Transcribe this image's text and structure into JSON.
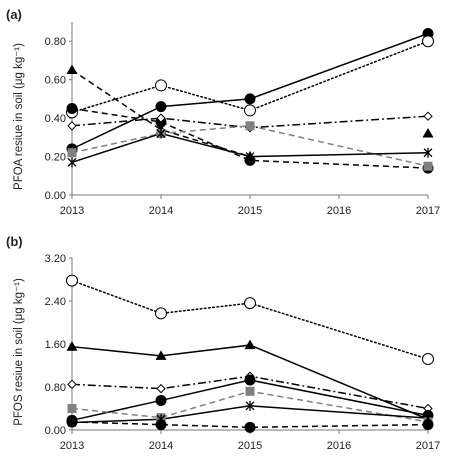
{
  "chart_data": [
    {
      "panel_label": "(a)",
      "type": "line",
      "ylabel": "PFOA resiue in soil (μg kg⁻¹)",
      "x": [
        2013,
        2014,
        2015,
        2017
      ],
      "xticks": [
        2013,
        2014,
        2015,
        2016,
        2017
      ],
      "ylim": [
        0,
        0.9
      ],
      "yticks": [
        0.0,
        0.2,
        0.4,
        0.6,
        0.8
      ],
      "ytick_labels": [
        "0.00",
        "0.20",
        "0.40",
        "0.60",
        "0.80"
      ],
      "grid": false,
      "series": [
        {
          "marker": "circle-filled",
          "dash": "solid",
          "color": "#000000",
          "values": [
            0.24,
            0.46,
            0.5,
            0.84
          ]
        },
        {
          "marker": "circle-open",
          "dash": "dotted",
          "color": "#000000",
          "values": [
            0.43,
            0.57,
            0.44,
            0.8
          ]
        },
        {
          "marker": "triangle-filled",
          "dash": "dashed",
          "color": "#000000",
          "values": [
            0.65,
            0.34,
            0.2,
            null
          ]
        },
        {
          "marker": "triangle-filled",
          "dash": "none",
          "color": "#000000",
          "values": [
            null,
            null,
            null,
            0.32
          ]
        },
        {
          "marker": "circle-filled",
          "dash": "dashed",
          "color": "#000000",
          "values": [
            0.45,
            0.38,
            0.18,
            0.14
          ]
        },
        {
          "marker": "diamond-open",
          "dash": "dashdot",
          "color": "#000000",
          "values": [
            0.36,
            0.4,
            0.35,
            0.41
          ]
        },
        {
          "marker": "square-filled",
          "dash": "dashed",
          "color": "#808080",
          "values": [
            0.22,
            0.32,
            0.36,
            0.15
          ]
        },
        {
          "marker": "star",
          "dash": "solid",
          "color": "#000000",
          "values": [
            0.17,
            0.32,
            0.2,
            0.22
          ]
        }
      ]
    },
    {
      "panel_label": "(b)",
      "type": "line",
      "ylabel": "PFOS resiue in soil (μg kg⁻¹)",
      "x": [
        2013,
        2014,
        2015,
        2017
      ],
      "xticks": [
        2013,
        2014,
        2015,
        2016,
        2017
      ],
      "ylim": [
        0,
        3.2
      ],
      "yticks": [
        0.0,
        0.8,
        1.6,
        2.4,
        3.2
      ],
      "ytick_labels": [
        "0.00",
        "0.80",
        "1.60",
        "2.40",
        "3.20"
      ],
      "grid": false,
      "series": [
        {
          "marker": "circle-open",
          "dash": "dotted",
          "color": "#000000",
          "values": [
            2.78,
            2.17,
            2.36,
            1.32
          ]
        },
        {
          "marker": "triangle-filled",
          "dash": "solid",
          "color": "#000000",
          "values": [
            1.55,
            1.38,
            1.58,
            0.2
          ]
        },
        {
          "marker": "diamond-open",
          "dash": "dashdot",
          "color": "#000000",
          "values": [
            0.85,
            0.77,
            1.0,
            0.4
          ]
        },
        {
          "marker": "circle-filled",
          "dash": "solid",
          "color": "#000000",
          "values": [
            0.18,
            0.55,
            0.93,
            0.27
          ]
        },
        {
          "marker": "square-filled",
          "dash": "dashed",
          "color": "#808080",
          "values": [
            0.4,
            0.23,
            0.72,
            0.15
          ]
        },
        {
          "marker": "star",
          "dash": "solid",
          "color": "#000000",
          "values": [
            0.14,
            0.2,
            0.45,
            0.22
          ]
        },
        {
          "marker": "circle-filled",
          "dash": "dashed",
          "color": "#000000",
          "values": [
            0.15,
            0.1,
            0.05,
            0.1
          ]
        }
      ]
    }
  ]
}
